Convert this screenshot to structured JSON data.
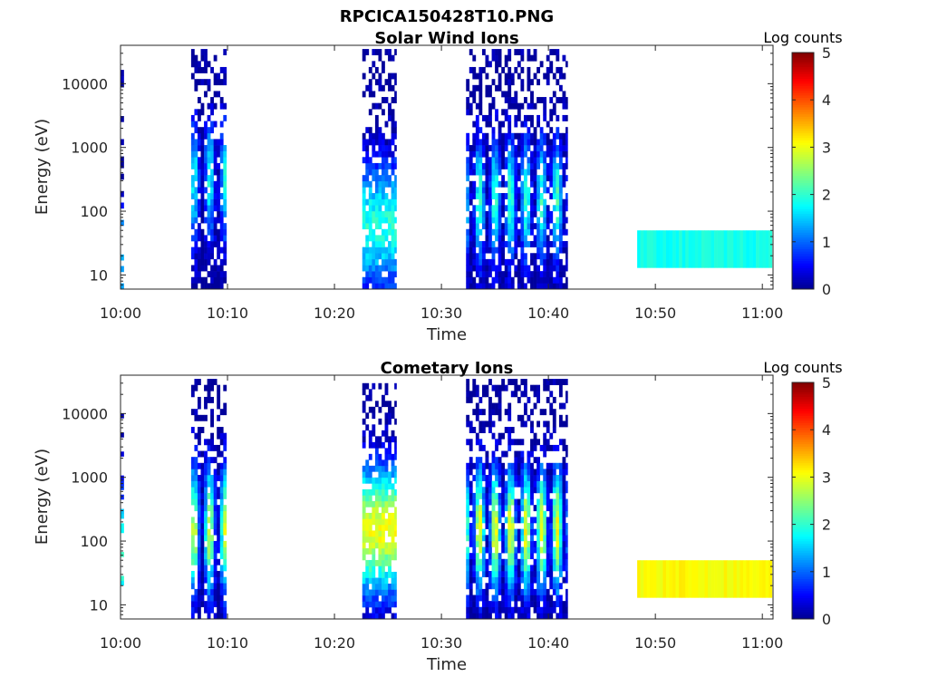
{
  "figure": {
    "title": "RPCICA150428T10.PNG"
  },
  "colors": {
    "jet_stops": [
      "#00008f",
      "#0000ff",
      "#00ffff",
      "#ffff00",
      "#ff0000",
      "#800000"
    ]
  },
  "chart_data": [
    {
      "type": "heatmap",
      "title": "Solar Wind Ions",
      "xlabel": "Time",
      "ylabel": "Energy (eV)",
      "y_scale": "log",
      "x_ticks": [
        "10:00",
        "10:10",
        "10:20",
        "10:30",
        "10:40",
        "10:50",
        "11:00"
      ],
      "y_ticks": [
        "10",
        "100",
        "1000",
        "10000"
      ],
      "x_range_minutes": [
        0,
        61
      ],
      "y_range_eV": [
        6,
        40000
      ],
      "colorbar": {
        "label": "Log counts",
        "range": [
          0,
          5
        ],
        "ticks": [
          "0",
          "1",
          "2",
          "3",
          "4",
          "5"
        ]
      },
      "blocks": [
        {
          "t_start_min": 0.0,
          "t_end_min": 0.3,
          "e_min_eV": 6,
          "e_max_eV": 25000,
          "peak_log_counts": 1.5,
          "peak_energy_eV": 15,
          "pattern": "sparse"
        },
        {
          "t_start_min": 6.6,
          "t_end_min": 10.0,
          "e_min_eV": 6,
          "e_max_eV": 35000,
          "peak_log_counts": 1.8,
          "peak_energy_eV": 300,
          "pattern": "streaks"
        },
        {
          "t_start_min": 22.6,
          "t_end_min": 25.8,
          "e_min_eV": 6,
          "e_max_eV": 35000,
          "peak_log_counts": 1.9,
          "peak_energy_eV": 60,
          "pattern": "dense"
        },
        {
          "t_start_min": 32.3,
          "t_end_min": 41.8,
          "e_min_eV": 6,
          "e_max_eV": 35000,
          "peak_log_counts": 2.1,
          "peak_energy_eV": 150,
          "pattern": "streaks"
        },
        {
          "t_start_min": 48.3,
          "t_end_min": 61.0,
          "e_min_eV": 13,
          "e_max_eV": 50,
          "peak_log_counts": 1.85,
          "peak_energy_eV": 25,
          "pattern": "band"
        }
      ]
    },
    {
      "type": "heatmap",
      "title": "Cometary Ions",
      "xlabel": "Time",
      "ylabel": "Energy (eV)",
      "y_scale": "log",
      "x_ticks": [
        "10:00",
        "10:10",
        "10:20",
        "10:30",
        "10:40",
        "10:50",
        "11:00"
      ],
      "y_ticks": [
        "10",
        "100",
        "1000",
        "10000"
      ],
      "x_range_minutes": [
        0,
        61
      ],
      "y_range_eV": [
        6,
        40000
      ],
      "colorbar": {
        "label": "Log counts",
        "range": [
          0,
          5
        ],
        "ticks": [
          "0",
          "1",
          "2",
          "3",
          "4",
          "5"
        ]
      },
      "blocks": [
        {
          "t_start_min": 0.0,
          "t_end_min": 0.3,
          "e_min_eV": 12,
          "e_max_eV": 12000,
          "peak_log_counts": 2.2,
          "peak_energy_eV": 60,
          "pattern": "sparse"
        },
        {
          "t_start_min": 6.6,
          "t_end_min": 10.0,
          "e_min_eV": 6,
          "e_max_eV": 35000,
          "peak_log_counts": 2.9,
          "peak_energy_eV": 150,
          "pattern": "streaks"
        },
        {
          "t_start_min": 22.6,
          "t_end_min": 25.8,
          "e_min_eV": 6,
          "e_max_eV": 30000,
          "peak_log_counts": 3.0,
          "peak_energy_eV": 150,
          "pattern": "dense"
        },
        {
          "t_start_min": 32.3,
          "t_end_min": 41.8,
          "e_min_eV": 6,
          "e_max_eV": 35000,
          "peak_log_counts": 3.1,
          "peak_energy_eV": 150,
          "pattern": "streaks"
        },
        {
          "t_start_min": 48.3,
          "t_end_min": 61.0,
          "e_min_eV": 13,
          "e_max_eV": 50,
          "peak_log_counts": 3.1,
          "peak_energy_eV": 25,
          "pattern": "band"
        }
      ]
    }
  ]
}
